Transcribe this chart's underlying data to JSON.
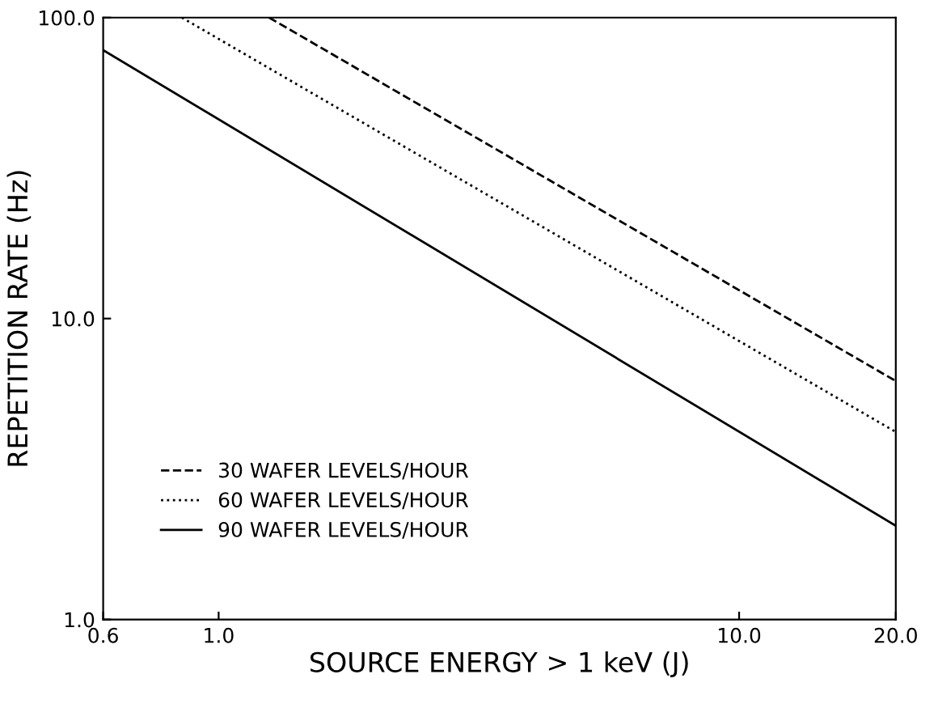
{
  "chart_data": {
    "type": "line",
    "xlabel": "SOURCE ENERGY > 1 keV (J)",
    "ylabel": "REPETITION RATE (Hz)",
    "log": "xy",
    "xlim": [
      0.6,
      20
    ],
    "ylim": [
      1,
      100
    ],
    "xticks": [
      {
        "value": 0.6,
        "label": "0.6"
      },
      {
        "value": 1,
        "label": "1.0"
      },
      {
        "value": 10,
        "label": "10.0"
      },
      {
        "value": 20,
        "label": "20.0"
      }
    ],
    "yticks": [
      {
        "value": 1,
        "label": "1.0"
      },
      {
        "value": 10,
        "label": "10.0"
      },
      {
        "value": 100,
        "label": "100.0"
      }
    ],
    "grid": false,
    "legend": "bottom left",
    "series": [
      {
        "name": "30 WAFER LEVELS/HOUR",
        "color": "#000000",
        "line_style": "dashed",
        "x": [
          1.25,
          20
        ],
        "values": [
          100,
          6.2
        ]
      },
      {
        "name": "60 WAFER LEVELS/HOUR",
        "color": "#000000",
        "line_style": "dotted",
        "x": [
          0.85,
          20
        ],
        "values": [
          100,
          4.2
        ]
      },
      {
        "name": "90 WAFER LEVELS/HOUR",
        "color": "#000000",
        "line_style": "solid",
        "x": [
          0.6,
          20
        ],
        "values": [
          78,
          2.05
        ]
      }
    ]
  }
}
